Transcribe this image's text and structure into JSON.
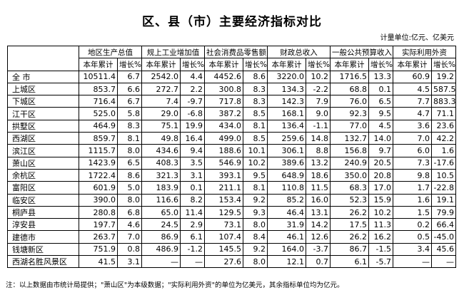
{
  "title": "区、县（市）主要经济指标对比",
  "unit": "计量单位:亿元、亿美元",
  "columns": [
    "地区生产总值",
    "规上工业增加值",
    "社会消费品零售额",
    "财政总收入",
    "一般公共预算收入",
    "实际利用外资"
  ],
  "subheaders": [
    "本年累计",
    "增长%"
  ],
  "rows": [
    {
      "name": "全 市",
      "cells": [
        "10511.4",
        "6.7",
        "2542.0",
        "4.4",
        "4452.6",
        "8.6",
        "3220.0",
        "10.2",
        "1716.5",
        "13.3",
        "60.9",
        "19.2"
      ]
    },
    {
      "name": "上城区",
      "cells": [
        "853.7",
        "6.6",
        "272.7",
        "2.2",
        "300.8",
        "8.3",
        "134.3",
        "-2.2",
        "68.8",
        "0.1",
        "4.5",
        "587.5"
      ]
    },
    {
      "name": "下城区",
      "cells": [
        "716.4",
        "6.7",
        "7.4",
        "-9.7",
        "717.8",
        "8.3",
        "142.3",
        "7.9",
        "76.0",
        "6.5",
        "7.7",
        "883.3"
      ]
    },
    {
      "name": "江干区",
      "cells": [
        "525.0",
        "5.8",
        "29.0",
        "-6.8",
        "387.2",
        "8.5",
        "168.1",
        "9.0",
        "92.3",
        "9.5",
        "4.7",
        "71.1"
      ]
    },
    {
      "name": "拱墅区",
      "cells": [
        "464.9",
        "8.3",
        "75.1",
        "19.9",
        "434.0",
        "8.1",
        "136.4",
        "-1.1",
        "77.0",
        "4.5",
        "3.6",
        "23.6"
      ]
    },
    {
      "name": "西湖区",
      "cells": [
        "859.7",
        "8.1",
        "49.8",
        "16.4",
        "499.0",
        "8.5",
        "259.6",
        "14.8",
        "132.7",
        "14.0",
        "7.0",
        "42.2"
      ]
    },
    {
      "name": "滨江区",
      "cells": [
        "1115.7",
        "8.0",
        "434.6",
        "9.4",
        "188.6",
        "10.1",
        "306.1",
        "8.8",
        "156.8",
        "9.7",
        "6.0",
        "1.6"
      ]
    },
    {
      "name": "萧山区",
      "cells": [
        "1423.9",
        "6.5",
        "408.3",
        "3.5",
        "546.9",
        "10.2",
        "389.6",
        "13.2",
        "240.9",
        "20.5",
        "7.3",
        "-17.6"
      ]
    },
    {
      "name": "余杭区",
      "cells": [
        "1722.4",
        "8.6",
        "321.3",
        "3.1",
        "393.1",
        "9.5",
        "648.9",
        "18.6",
        "350.0",
        "20.8",
        "9.8",
        "10.5"
      ]
    },
    {
      "name": "富阳区",
      "cells": [
        "601.9",
        "5.0",
        "183.9",
        "0.1",
        "211.1",
        "8.1",
        "110.8",
        "11.5",
        "68.3",
        "17.0",
        "1.7",
        "-22.8"
      ]
    },
    {
      "name": "临安区",
      "cells": [
        "390.0",
        "8.0",
        "116.6",
        "8.2",
        "153.4",
        "9.2",
        "85.2",
        "16.0",
        "52.3",
        "15.9",
        "1.6",
        "19.1"
      ]
    },
    {
      "name": "桐庐县",
      "cells": [
        "280.8",
        "6.8",
        "65.0",
        "11.4",
        "129.5",
        "9.3",
        "46.4",
        "13.1",
        "26.2",
        "10.2",
        "1.5",
        "79.9"
      ]
    },
    {
      "name": "淳安县",
      "cells": [
        "197.7",
        "4.6",
        "24.5",
        "2.9",
        "73.1",
        "8.0",
        "31.9",
        "14.2",
        "17.5",
        "11.3",
        "0.2",
        "66.4"
      ]
    },
    {
      "name": "建德市",
      "cells": [
        "263.7",
        "7.0",
        "86.9",
        "6.1",
        "107.4",
        "8.4",
        "46.1",
        "12.6",
        "26.2",
        "16.2",
        "0.5",
        "-45.0"
      ]
    },
    {
      "name": "钱塘新区",
      "cells": [
        "751.9",
        "0.8",
        "486.9",
        "-1.2",
        "145.5",
        "9.2",
        "164.0",
        "-3.7",
        "86.7",
        "-1.5",
        "3.4",
        "45.6"
      ]
    },
    {
      "name": "西湖名胜风景区",
      "cells": [
        "41.5",
        "3.1",
        "—",
        "—",
        "27.6",
        "8.0",
        "12.1",
        "0.7",
        "6.1",
        "-5.7",
        "—",
        "—"
      ]
    }
  ],
  "note": "注：以上数据由市统计局提供；\"萧山区\"为本级数据；\"实际利用外资\"的单位为亿美元，其余指标单位均为亿元。"
}
